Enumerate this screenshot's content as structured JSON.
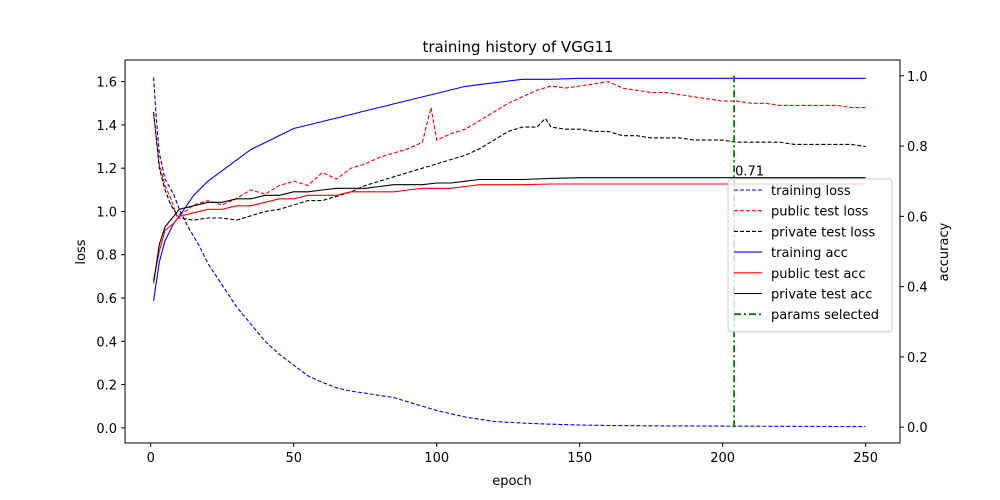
{
  "chart_data": {
    "type": "line",
    "title": "training history of VGG11",
    "xlabel": "epoch",
    "ylabel_left": "loss",
    "ylabel_right": "accuracy",
    "xlim": [
      -9,
      262
    ],
    "ylim_left": [
      -0.07,
      1.7
    ],
    "ylim_right": [
      -0.045,
      1.045
    ],
    "x_ticks": [
      0,
      50,
      100,
      150,
      200,
      250
    ],
    "y_ticks_left": [
      0.0,
      0.2,
      0.4,
      0.6,
      0.8,
      1.0,
      1.2,
      1.4,
      1.6
    ],
    "y_ticks_right": [
      0.0,
      0.2,
      0.4,
      0.6,
      0.8,
      1.0
    ],
    "legend_position": "center-right",
    "annotation": {
      "text": "0.71",
      "x": 204,
      "y": 0.71
    },
    "series": [
      {
        "name": "training loss",
        "axis": "left",
        "color": "#0000ff",
        "style": "dashed",
        "points": [
          [
            1,
            1.62
          ],
          [
            2,
            1.42
          ],
          [
            3,
            1.27
          ],
          [
            5,
            1.15
          ],
          [
            8,
            1.08
          ],
          [
            10,
            1.01
          ],
          [
            13,
            0.93
          ],
          [
            17,
            0.84
          ],
          [
            20,
            0.76
          ],
          [
            25,
            0.66
          ],
          [
            30,
            0.56
          ],
          [
            35,
            0.48
          ],
          [
            40,
            0.4
          ],
          [
            45,
            0.34
          ],
          [
            50,
            0.29
          ],
          [
            55,
            0.24
          ],
          [
            60,
            0.21
          ],
          [
            65,
            0.185
          ],
          [
            70,
            0.17
          ],
          [
            75,
            0.16
          ],
          [
            80,
            0.15
          ],
          [
            85,
            0.14
          ],
          [
            90,
            0.12
          ],
          [
            95,
            0.1
          ],
          [
            100,
            0.08
          ],
          [
            105,
            0.065
          ],
          [
            110,
            0.05
          ],
          [
            115,
            0.04
          ],
          [
            120,
            0.03
          ],
          [
            130,
            0.022
          ],
          [
            140,
            0.017
          ],
          [
            150,
            0.013
          ],
          [
            160,
            0.011
          ],
          [
            180,
            0.009
          ],
          [
            200,
            0.008
          ],
          [
            220,
            0.007
          ],
          [
            250,
            0.006
          ]
        ]
      },
      {
        "name": "public test loss",
        "axis": "left",
        "color": "#ff0000",
        "style": "dashed",
        "points": [
          [
            1,
            1.45
          ],
          [
            3,
            1.22
          ],
          [
            5,
            1.12
          ],
          [
            7,
            1.06
          ],
          [
            9,
            0.98
          ],
          [
            12,
            1.0
          ],
          [
            15,
            1.03
          ],
          [
            20,
            1.05
          ],
          [
            25,
            1.03
          ],
          [
            30,
            1.06
          ],
          [
            35,
            1.1
          ],
          [
            40,
            1.08
          ],
          [
            45,
            1.12
          ],
          [
            50,
            1.14
          ],
          [
            55,
            1.12
          ],
          [
            60,
            1.18
          ],
          [
            65,
            1.15
          ],
          [
            70,
            1.2
          ],
          [
            75,
            1.22
          ],
          [
            80,
            1.25
          ],
          [
            85,
            1.27
          ],
          [
            90,
            1.29
          ],
          [
            95,
            1.32
          ],
          [
            98,
            1.48
          ],
          [
            100,
            1.33
          ],
          [
            105,
            1.36
          ],
          [
            110,
            1.38
          ],
          [
            115,
            1.42
          ],
          [
            120,
            1.46
          ],
          [
            125,
            1.5
          ],
          [
            130,
            1.53
          ],
          [
            135,
            1.56
          ],
          [
            140,
            1.58
          ],
          [
            145,
            1.57
          ],
          [
            150,
            1.58
          ],
          [
            155,
            1.59
          ],
          [
            160,
            1.6
          ],
          [
            165,
            1.57
          ],
          [
            170,
            1.56
          ],
          [
            175,
            1.55
          ],
          [
            180,
            1.55
          ],
          [
            185,
            1.54
          ],
          [
            190,
            1.53
          ],
          [
            195,
            1.52
          ],
          [
            200,
            1.51
          ],
          [
            205,
            1.51
          ],
          [
            210,
            1.5
          ],
          [
            215,
            1.5
          ],
          [
            220,
            1.49
          ],
          [
            225,
            1.49
          ],
          [
            230,
            1.49
          ],
          [
            235,
            1.49
          ],
          [
            240,
            1.49
          ],
          [
            245,
            1.48
          ],
          [
            250,
            1.48
          ]
        ]
      },
      {
        "name": "private test loss",
        "axis": "left",
        "color": "#000000",
        "style": "dashed",
        "points": [
          [
            1,
            1.46
          ],
          [
            3,
            1.2
          ],
          [
            5,
            1.1
          ],
          [
            7,
            1.03
          ],
          [
            10,
            0.97
          ],
          [
            15,
            0.96
          ],
          [
            20,
            0.97
          ],
          [
            25,
            0.97
          ],
          [
            30,
            0.96
          ],
          [
            35,
            0.98
          ],
          [
            40,
            1.0
          ],
          [
            45,
            1.01
          ],
          [
            50,
            1.03
          ],
          [
            55,
            1.05
          ],
          [
            60,
            1.05
          ],
          [
            65,
            1.07
          ],
          [
            70,
            1.09
          ],
          [
            75,
            1.12
          ],
          [
            80,
            1.14
          ],
          [
            85,
            1.16
          ],
          [
            90,
            1.18
          ],
          [
            95,
            1.2
          ],
          [
            100,
            1.22
          ],
          [
            105,
            1.24
          ],
          [
            110,
            1.26
          ],
          [
            115,
            1.29
          ],
          [
            120,
            1.33
          ],
          [
            125,
            1.37
          ],
          [
            130,
            1.39
          ],
          [
            135,
            1.39
          ],
          [
            138,
            1.43
          ],
          [
            140,
            1.39
          ],
          [
            145,
            1.38
          ],
          [
            150,
            1.38
          ],
          [
            155,
            1.37
          ],
          [
            160,
            1.37
          ],
          [
            165,
            1.35
          ],
          [
            170,
            1.35
          ],
          [
            175,
            1.34
          ],
          [
            180,
            1.34
          ],
          [
            185,
            1.34
          ],
          [
            190,
            1.33
          ],
          [
            195,
            1.33
          ],
          [
            200,
            1.33
          ],
          [
            205,
            1.32
          ],
          [
            210,
            1.32
          ],
          [
            215,
            1.32
          ],
          [
            220,
            1.32
          ],
          [
            225,
            1.31
          ],
          [
            230,
            1.31
          ],
          [
            235,
            1.31
          ],
          [
            240,
            1.31
          ],
          [
            245,
            1.31
          ],
          [
            250,
            1.3
          ]
        ]
      },
      {
        "name": "training acc",
        "axis": "right",
        "color": "#0000ff",
        "style": "solid",
        "points": [
          [
            1,
            0.36
          ],
          [
            3,
            0.47
          ],
          [
            5,
            0.53
          ],
          [
            8,
            0.58
          ],
          [
            10,
            0.6
          ],
          [
            15,
            0.66
          ],
          [
            20,
            0.7
          ],
          [
            25,
            0.73
          ],
          [
            30,
            0.76
          ],
          [
            35,
            0.79
          ],
          [
            40,
            0.81
          ],
          [
            45,
            0.83
          ],
          [
            50,
            0.85
          ],
          [
            55,
            0.86
          ],
          [
            60,
            0.87
          ],
          [
            65,
            0.88
          ],
          [
            70,
            0.89
          ],
          [
            75,
            0.9
          ],
          [
            80,
            0.91
          ],
          [
            85,
            0.92
          ],
          [
            90,
            0.93
          ],
          [
            95,
            0.94
          ],
          [
            100,
            0.95
          ],
          [
            105,
            0.96
          ],
          [
            110,
            0.97
          ],
          [
            115,
            0.975
          ],
          [
            120,
            0.98
          ],
          [
            125,
            0.985
          ],
          [
            130,
            0.99
          ],
          [
            140,
            0.99
          ],
          [
            150,
            0.993
          ],
          [
            160,
            0.993
          ],
          [
            180,
            0.993
          ],
          [
            200,
            0.993
          ],
          [
            220,
            0.993
          ],
          [
            250,
            0.993
          ]
        ]
      },
      {
        "name": "public test acc",
        "axis": "right",
        "color": "#ff0000",
        "style": "solid",
        "points": [
          [
            1,
            0.42
          ],
          [
            3,
            0.5
          ],
          [
            5,
            0.56
          ],
          [
            8,
            0.58
          ],
          [
            10,
            0.6
          ],
          [
            15,
            0.61
          ],
          [
            20,
            0.62
          ],
          [
            25,
            0.62
          ],
          [
            30,
            0.63
          ],
          [
            35,
            0.63
          ],
          [
            40,
            0.64
          ],
          [
            45,
            0.65
          ],
          [
            50,
            0.65
          ],
          [
            55,
            0.66
          ],
          [
            60,
            0.66
          ],
          [
            65,
            0.66
          ],
          [
            70,
            0.67
          ],
          [
            75,
            0.67
          ],
          [
            80,
            0.67
          ],
          [
            85,
            0.67
          ],
          [
            90,
            0.675
          ],
          [
            95,
            0.68
          ],
          [
            100,
            0.68
          ],
          [
            105,
            0.68
          ],
          [
            110,
            0.685
          ],
          [
            115,
            0.69
          ],
          [
            120,
            0.69
          ],
          [
            130,
            0.69
          ],
          [
            140,
            0.692
          ],
          [
            150,
            0.692
          ],
          [
            160,
            0.692
          ],
          [
            180,
            0.692
          ],
          [
            200,
            0.692
          ],
          [
            220,
            0.692
          ],
          [
            250,
            0.692
          ]
        ]
      },
      {
        "name": "private test acc",
        "axis": "right",
        "color": "#000000",
        "style": "solid",
        "points": [
          [
            1,
            0.41
          ],
          [
            3,
            0.52
          ],
          [
            5,
            0.57
          ],
          [
            8,
            0.6
          ],
          [
            10,
            0.62
          ],
          [
            15,
            0.63
          ],
          [
            20,
            0.64
          ],
          [
            25,
            0.64
          ],
          [
            30,
            0.65
          ],
          [
            35,
            0.65
          ],
          [
            40,
            0.66
          ],
          [
            45,
            0.66
          ],
          [
            50,
            0.67
          ],
          [
            55,
            0.67
          ],
          [
            60,
            0.675
          ],
          [
            65,
            0.68
          ],
          [
            70,
            0.68
          ],
          [
            75,
            0.68
          ],
          [
            80,
            0.685
          ],
          [
            85,
            0.69
          ],
          [
            90,
            0.69
          ],
          [
            95,
            0.69
          ],
          [
            100,
            0.695
          ],
          [
            105,
            0.695
          ],
          [
            110,
            0.7
          ],
          [
            115,
            0.705
          ],
          [
            120,
            0.705
          ],
          [
            130,
            0.705
          ],
          [
            140,
            0.708
          ],
          [
            150,
            0.71
          ],
          [
            160,
            0.71
          ],
          [
            180,
            0.71
          ],
          [
            200,
            0.71
          ],
          [
            220,
            0.71
          ],
          [
            250,
            0.71
          ]
        ]
      },
      {
        "name": "params selected",
        "axis": "right",
        "color": "#008000",
        "style": "dashdot",
        "points": [
          [
            204,
            0.0
          ],
          [
            204,
            1.0
          ]
        ]
      }
    ]
  }
}
